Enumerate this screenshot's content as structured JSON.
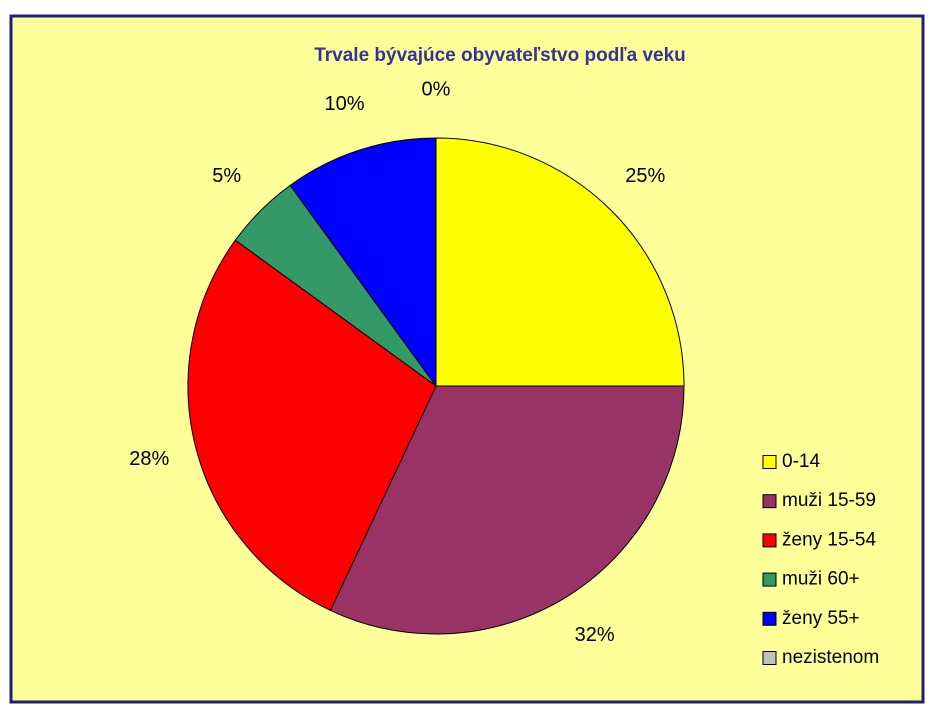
{
  "chart_data": {
    "type": "pie",
    "title": "Trvale bývajúce obyvateľstvo podľa veku",
    "categories": [
      "0-14",
      "muži 15-59",
      "ženy 15-54",
      "muži 60+",
      "ženy 55+",
      "nezistenom"
    ],
    "values": [
      25,
      32,
      28,
      5,
      10,
      0
    ],
    "value_labels": [
      "25%",
      "32%",
      "28%",
      "5%",
      "10%",
      "0%"
    ],
    "colors": [
      "#ffff00",
      "#993366",
      "#ff0000",
      "#339966",
      "#0000ff",
      "#c0c0c0"
    ],
    "legend": "right"
  }
}
